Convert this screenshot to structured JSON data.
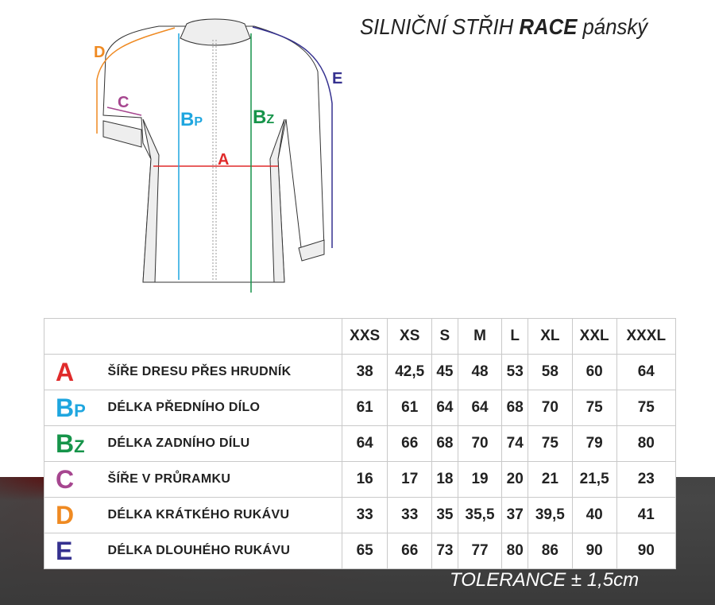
{
  "title": {
    "normal": "SILNIČNÍ STŘIH",
    "bold": "RACE",
    "suffix": "pánský"
  },
  "diagram": {
    "labels": {
      "A": "A",
      "Bp": "B",
      "Bp_sub": "P",
      "Bz": "B",
      "Bz_sub": "Z",
      "C": "C",
      "D": "D",
      "E": "E"
    }
  },
  "colors": {
    "A": "#e02b2b",
    "Bp": "#1fa6df",
    "Bz": "#16944a",
    "C": "#a6468f",
    "D": "#ef8a22",
    "E": "#35318f"
  },
  "table": {
    "sizes": [
      "XXS",
      "XS",
      "S",
      "M",
      "L",
      "XL",
      "XXL",
      "XXXL"
    ],
    "rows": [
      {
        "code": "A",
        "sub": "",
        "color": "#e02b2b",
        "label": "ŠÍŘE DRESU PŘES HRUDNÍK",
        "values": [
          "38",
          "42,5",
          "45",
          "48",
          "53",
          "58",
          "60",
          "64"
        ]
      },
      {
        "code": "B",
        "sub": "P",
        "color": "#1fa6df",
        "label": "DÉLKA PŘEDNÍHO DÍLO",
        "values": [
          "61",
          "61",
          "64",
          "64",
          "68",
          "70",
          "75",
          "75"
        ]
      },
      {
        "code": "B",
        "sub": "Z",
        "color": "#16944a",
        "label": "DÉLKA ZADNÍHO DÍLU",
        "values": [
          "64",
          "66",
          "68",
          "70",
          "74",
          "75",
          "79",
          "80"
        ]
      },
      {
        "code": "C",
        "sub": "",
        "color": "#a6468f",
        "label": "ŠÍŘE V PRŮRAMKU",
        "values": [
          "16",
          "17",
          "18",
          "19",
          "20",
          "21",
          "21,5",
          "23"
        ]
      },
      {
        "code": "D",
        "sub": "",
        "color": "#ef8a22",
        "label": "DÉLKA KRÁTKÉHO RUKÁVU",
        "values": [
          "33",
          "33",
          "35",
          "35,5",
          "37",
          "39,5",
          "40",
          "41"
        ]
      },
      {
        "code": "E",
        "sub": "",
        "color": "#35318f",
        "label": "DÉLKA DLOUHÉHO RUKÁVU",
        "values": [
          "65",
          "66",
          "73",
          "77",
          "80",
          "86",
          "90",
          "90"
        ]
      }
    ]
  },
  "tolerance": "TOLERANCE ±  1,5cm"
}
